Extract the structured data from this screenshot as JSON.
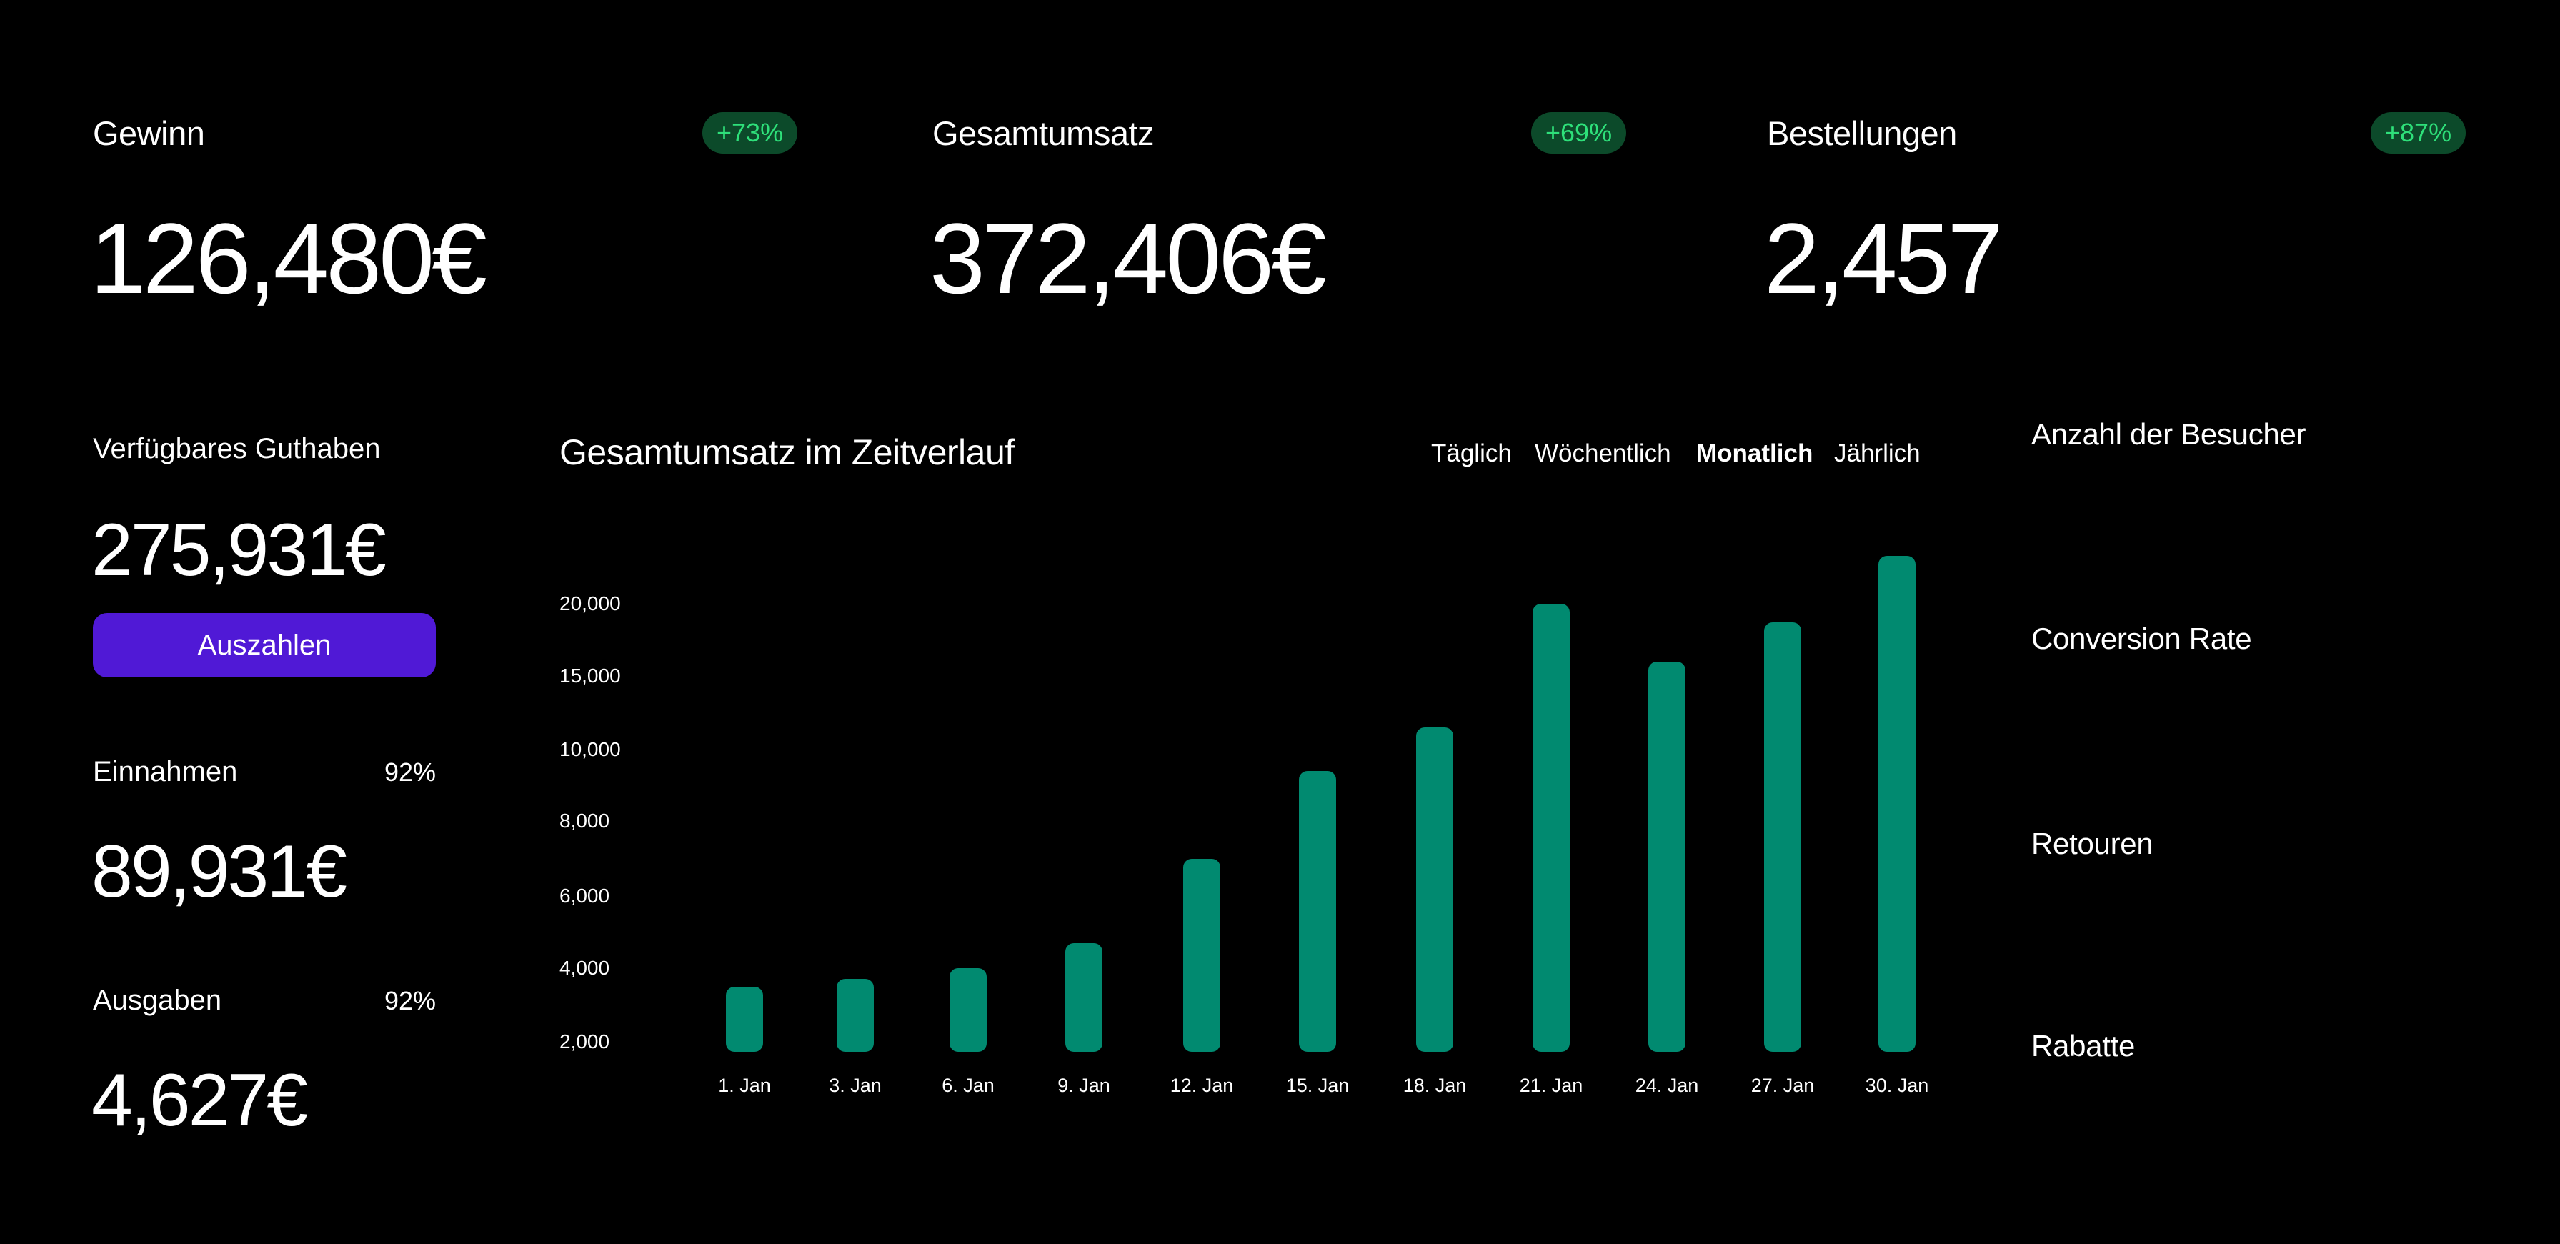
{
  "colors": {
    "background": "#000000",
    "text": "#ffffff",
    "badge_bg": "#0C4A2A",
    "badge_text": "#2EE07A",
    "button_bg": "#5019D6",
    "bar": "#018A70"
  },
  "kpis": [
    {
      "label": "Gewinn",
      "value": "126,480€",
      "badge": "+73%"
    },
    {
      "label": "Gesamtumsatz",
      "value": "372,406€",
      "badge": "+69%"
    },
    {
      "label": "Bestellungen",
      "value": "2,457",
      "badge": "+87%"
    }
  ],
  "balance": {
    "label": "Verfügbares Guthaben",
    "value": "275,931€",
    "button_label": "Auszahlen"
  },
  "income": {
    "label": "Einnahmen",
    "percent": "92%",
    "value": "89,931€"
  },
  "expenses": {
    "label": "Ausgaben",
    "percent": "92%",
    "value": "4,627€"
  },
  "chart": {
    "title": "Gesamtumsatz im Zeitverlauf",
    "tabs": [
      {
        "label": "Täglich",
        "active": false
      },
      {
        "label": "Wöchentlich",
        "active": false
      },
      {
        "label": "Monatlich",
        "active": true
      },
      {
        "label": "Jährlich",
        "active": false
      }
    ]
  },
  "chart_data": {
    "type": "bar",
    "title": "Gesamtumsatz im Zeitverlauf",
    "xlabel": "",
    "ylabel": "",
    "categories": [
      "1. Jan",
      "3. Jan",
      "6. Jan",
      "9. Jan",
      "12. Jan",
      "15. Jan",
      "18. Jan",
      "21. Jan",
      "24. Jan",
      "27. Jan",
      "30. Jan"
    ],
    "values": [
      3500,
      3700,
      4000,
      4700,
      7000,
      9400,
      11500,
      20000,
      16000,
      18700,
      23300
    ],
    "y_ticks": [
      "20,000",
      "15,000",
      "10,000",
      "8,000",
      "6,000",
      "4,000",
      "2,000"
    ],
    "ylim": [
      2000,
      24000
    ],
    "grid": false,
    "legend": "none"
  },
  "side_metrics": [
    {
      "label": "Anzahl der Besucher"
    },
    {
      "label": "Conversion Rate"
    },
    {
      "label": "Retouren"
    },
    {
      "label": "Rabatte"
    }
  ]
}
